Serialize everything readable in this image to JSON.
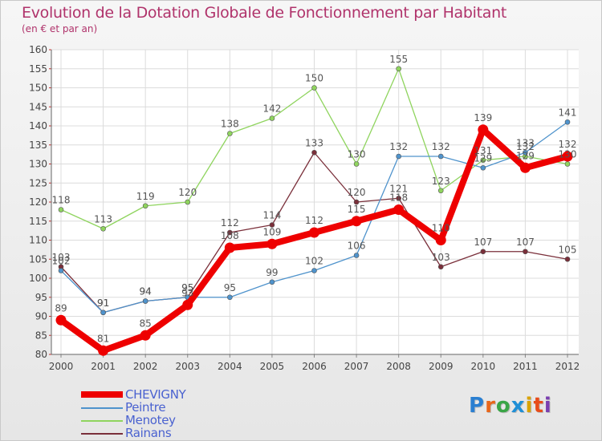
{
  "header": {
    "title": "Evolution de la Dotation Globale de Fonctionnement par Habitant",
    "subtitle": "(en € et par an)"
  },
  "logo": {
    "text": "Proxiti",
    "letters": [
      "P",
      "r",
      "o",
      "x",
      "i",
      "t",
      "i"
    ],
    "colors": [
      "#2a7fd1",
      "#e8661a",
      "#3aa546",
      "#1f8fd6",
      "#d9a300",
      "#e84c1a",
      "#7a3fb0"
    ]
  },
  "chart_data": {
    "type": "line",
    "title": "Evolution de la Dotation Globale de Fonctionnement par Habitant",
    "subtitle": "(en € et par an)",
    "xlabel": "",
    "ylabel": "",
    "x": [
      "2000",
      "2001",
      "2002",
      "2003",
      "2004",
      "2005",
      "2006",
      "2007",
      "2008",
      "2009",
      "2010",
      "2011",
      "2012"
    ],
    "ylim": [
      80,
      160
    ],
    "yticks": [
      80,
      85,
      90,
      95,
      100,
      105,
      110,
      115,
      120,
      125,
      130,
      135,
      140,
      145,
      150,
      155,
      160
    ],
    "grid": true,
    "legend_position": "bottom-left",
    "series": [
      {
        "name": "CHEVIGNY",
        "color": "#ee0000",
        "values": [
          89,
          81,
          85,
          93,
          108,
          109,
          112,
          115,
          118,
          110,
          139,
          129,
          132
        ]
      },
      {
        "name": "Peintre",
        "color": "#4f93cc",
        "values": [
          102,
          91,
          94,
          95,
          95,
          99,
          102,
          106,
          132,
          132,
          129,
          133,
          141
        ]
      },
      {
        "name": "Menotey",
        "color": "#8fd45e",
        "values": [
          118,
          113,
          119,
          120,
          138,
          142,
          150,
          130,
          155,
          123,
          131,
          132,
          130
        ]
      },
      {
        "name": "Rainans",
        "color": "#7a2f3a",
        "values": [
          103,
          91,
          94,
          95,
          112,
          114,
          133,
          120,
          121,
          103,
          107,
          107,
          105
        ]
      }
    ]
  }
}
